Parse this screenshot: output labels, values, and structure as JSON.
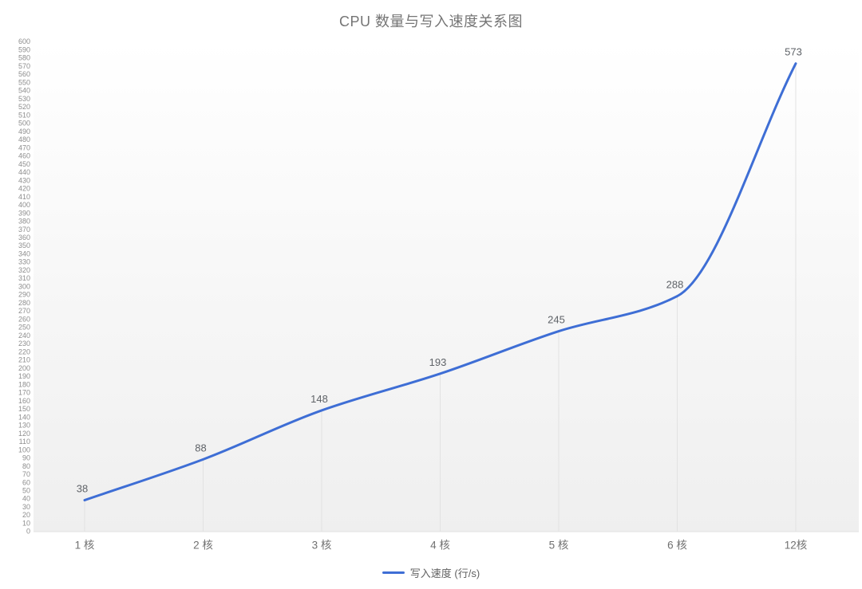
{
  "title": "CPU 数量与写入速度关系图",
  "colors": {
    "line": "#3e6ed5",
    "title_text": "#757575",
    "y_tick_text": "#8d8d8d",
    "x_label_text": "#707070",
    "point_label_text": "#5f6368",
    "axis_line": "#e0e0e0",
    "drop_line": "#e2e2e2",
    "plot_bg_top": "#ffffff",
    "plot_bg_bottom": "#efefef"
  },
  "chart_data": {
    "type": "line",
    "title": "CPU 数量与写入速度关系图",
    "categories": [
      "1 核",
      "2 核",
      "3 核",
      "4 核",
      "5 核",
      "6 核",
      "12核"
    ],
    "series": [
      {
        "name": "写入速度 (行/s)",
        "color": "#3e6ed5",
        "values": [
          38,
          88,
          148,
          193,
          245,
          288,
          573
        ]
      }
    ],
    "point_labels_shown": true,
    "point_labels": [
      "38",
      "88",
      "148",
      "193",
      "245",
      "288",
      "573"
    ],
    "xlabel": "",
    "ylabel": "",
    "ylim": [
      0,
      600
    ],
    "y_tick_step": 10,
    "grid": "off",
    "drop_lines": "vertical-to-axis",
    "smooth": true,
    "legend_position": "bottom"
  },
  "legend": {
    "items": [
      {
        "label": "写入速度 (行/s)",
        "color": "#3e6ed5"
      }
    ]
  }
}
